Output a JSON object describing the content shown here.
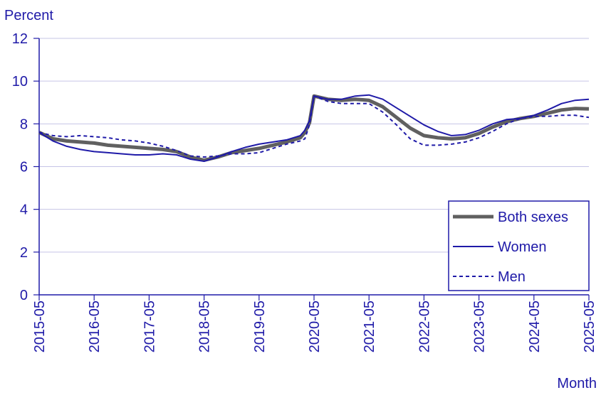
{
  "chart_data": {
    "type": "line",
    "title": "",
    "ylabel": "Percent",
    "xlabel": "Month",
    "ylim": [
      0,
      12
    ],
    "yticks": [
      "0",
      "2",
      "4",
      "6",
      "8",
      "10",
      "12"
    ],
    "xticks": [
      "2015-05",
      "2016-05",
      "2017-05",
      "2018-05",
      "2019-05",
      "2020-05",
      "2021-05",
      "2022-05",
      "2023-05",
      "2024-05",
      "2025-05"
    ],
    "grid": true,
    "legend_position": "bottom-right",
    "colors": {
      "axis": "#1f1aa8",
      "grid": "#c6c4e6",
      "both": "#606060",
      "women": "#1f1aa8",
      "men": "#1f1aa8"
    },
    "series": [
      {
        "name": "Both sexes",
        "style": "thick-gray",
        "points": [
          [
            "2015-05",
            7.6
          ],
          [
            "2015-08",
            7.3
          ],
          [
            "2015-11",
            7.2
          ],
          [
            "2016-02",
            7.15
          ],
          [
            "2016-05",
            7.1
          ],
          [
            "2016-08",
            7.0
          ],
          [
            "2016-11",
            6.95
          ],
          [
            "2017-02",
            6.9
          ],
          [
            "2017-05",
            6.85
          ],
          [
            "2017-08",
            6.8
          ],
          [
            "2017-11",
            6.7
          ],
          [
            "2018-02",
            6.45
          ],
          [
            "2018-05",
            6.3
          ],
          [
            "2018-08",
            6.45
          ],
          [
            "2018-11",
            6.65
          ],
          [
            "2019-02",
            6.75
          ],
          [
            "2019-05",
            6.85
          ],
          [
            "2019-08",
            7.0
          ],
          [
            "2019-11",
            7.15
          ],
          [
            "2020-02",
            7.35
          ],
          [
            "2020-03",
            7.6
          ],
          [
            "2020-04",
            8.05
          ],
          [
            "2020-05",
            9.3
          ],
          [
            "2020-08",
            9.15
          ],
          [
            "2020-11",
            9.1
          ],
          [
            "2021-02",
            9.15
          ],
          [
            "2021-05",
            9.1
          ],
          [
            "2021-08",
            8.8
          ],
          [
            "2021-11",
            8.3
          ],
          [
            "2022-02",
            7.8
          ],
          [
            "2022-05",
            7.45
          ],
          [
            "2022-08",
            7.35
          ],
          [
            "2022-11",
            7.3
          ],
          [
            "2023-02",
            7.35
          ],
          [
            "2023-05",
            7.55
          ],
          [
            "2023-08",
            7.85
          ],
          [
            "2023-11",
            8.1
          ],
          [
            "2024-02",
            8.25
          ],
          [
            "2024-05",
            8.35
          ],
          [
            "2024-08",
            8.5
          ],
          [
            "2024-11",
            8.65
          ],
          [
            "2025-02",
            8.72
          ],
          [
            "2025-05",
            8.7
          ]
        ]
      },
      {
        "name": "Women",
        "style": "solid",
        "points": [
          [
            "2015-05",
            7.6
          ],
          [
            "2015-08",
            7.2
          ],
          [
            "2015-11",
            6.95
          ],
          [
            "2016-02",
            6.8
          ],
          [
            "2016-05",
            6.7
          ],
          [
            "2016-08",
            6.65
          ],
          [
            "2016-11",
            6.6
          ],
          [
            "2017-02",
            6.55
          ],
          [
            "2017-05",
            6.55
          ],
          [
            "2017-08",
            6.6
          ],
          [
            "2017-11",
            6.55
          ],
          [
            "2018-02",
            6.35
          ],
          [
            "2018-05",
            6.25
          ],
          [
            "2018-08",
            6.45
          ],
          [
            "2018-11",
            6.7
          ],
          [
            "2019-02",
            6.9
          ],
          [
            "2019-05",
            7.05
          ],
          [
            "2019-08",
            7.15
          ],
          [
            "2019-11",
            7.25
          ],
          [
            "2020-02",
            7.45
          ],
          [
            "2020-03",
            7.7
          ],
          [
            "2020-04",
            8.15
          ],
          [
            "2020-05",
            9.3
          ],
          [
            "2020-08",
            9.15
          ],
          [
            "2020-11",
            9.15
          ],
          [
            "2021-02",
            9.3
          ],
          [
            "2021-05",
            9.35
          ],
          [
            "2021-08",
            9.15
          ],
          [
            "2021-11",
            8.75
          ],
          [
            "2022-02",
            8.35
          ],
          [
            "2022-05",
            7.95
          ],
          [
            "2022-08",
            7.65
          ],
          [
            "2022-11",
            7.45
          ],
          [
            "2023-02",
            7.5
          ],
          [
            "2023-05",
            7.7
          ],
          [
            "2023-08",
            8.0
          ],
          [
            "2023-11",
            8.2
          ],
          [
            "2024-02",
            8.25
          ],
          [
            "2024-05",
            8.4
          ],
          [
            "2024-08",
            8.65
          ],
          [
            "2024-11",
            8.95
          ],
          [
            "2025-02",
            9.1
          ],
          [
            "2025-05",
            9.15
          ]
        ]
      },
      {
        "name": "Men",
        "style": "dashed",
        "points": [
          [
            "2015-05",
            7.6
          ],
          [
            "2015-08",
            7.45
          ],
          [
            "2015-11",
            7.4
          ],
          [
            "2016-02",
            7.45
          ],
          [
            "2016-05",
            7.4
          ],
          [
            "2016-08",
            7.35
          ],
          [
            "2016-11",
            7.25
          ],
          [
            "2017-02",
            7.2
          ],
          [
            "2017-05",
            7.1
          ],
          [
            "2017-08",
            6.95
          ],
          [
            "2017-11",
            6.75
          ],
          [
            "2018-02",
            6.5
          ],
          [
            "2018-05",
            6.45
          ],
          [
            "2018-08",
            6.5
          ],
          [
            "2018-11",
            6.6
          ],
          [
            "2019-02",
            6.6
          ],
          [
            "2019-05",
            6.65
          ],
          [
            "2019-08",
            6.85
          ],
          [
            "2019-11",
            7.05
          ],
          [
            "2020-02",
            7.2
          ],
          [
            "2020-03",
            7.3
          ],
          [
            "2020-04",
            7.95
          ],
          [
            "2020-05",
            9.3
          ],
          [
            "2020-08",
            9.05
          ],
          [
            "2020-11",
            8.95
          ],
          [
            "2021-02",
            8.95
          ],
          [
            "2021-05",
            8.95
          ],
          [
            "2021-08",
            8.55
          ],
          [
            "2021-11",
            7.95
          ],
          [
            "2022-02",
            7.3
          ],
          [
            "2022-05",
            7.0
          ],
          [
            "2022-08",
            7.0
          ],
          [
            "2022-11",
            7.05
          ],
          [
            "2023-02",
            7.15
          ],
          [
            "2023-05",
            7.35
          ],
          [
            "2023-08",
            7.65
          ],
          [
            "2023-11",
            8.0
          ],
          [
            "2024-02",
            8.25
          ],
          [
            "2024-05",
            8.35
          ],
          [
            "2024-08",
            8.35
          ],
          [
            "2024-11",
            8.4
          ],
          [
            "2025-02",
            8.4
          ],
          [
            "2025-05",
            8.3
          ]
        ]
      }
    ]
  }
}
